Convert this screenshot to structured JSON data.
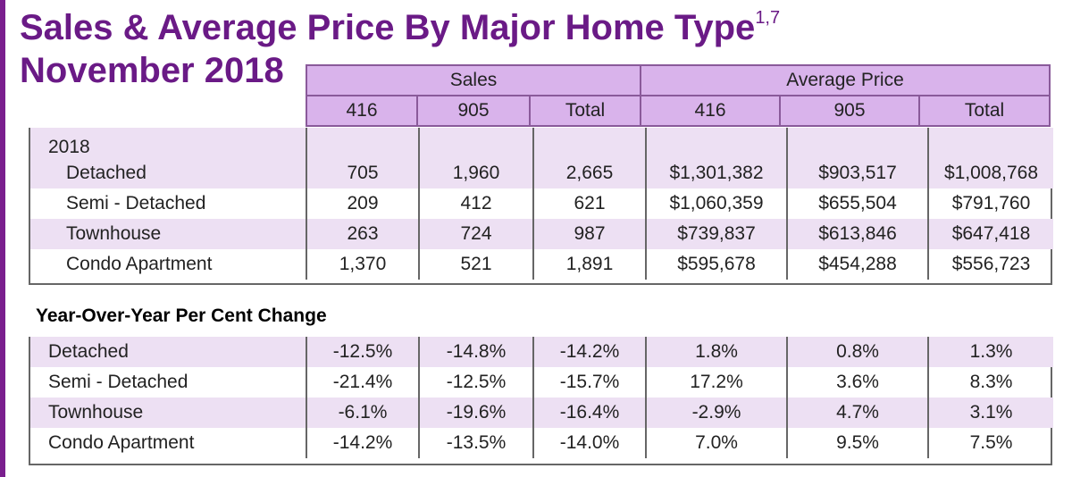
{
  "title": {
    "line1": "Sales & Average Price By Major Home Type",
    "superscript": "1,7",
    "line2": "November 2018"
  },
  "header": {
    "groups": [
      "Sales",
      "Average Price"
    ],
    "columns": [
      "416",
      "905",
      "Total",
      "416",
      "905",
      "Total"
    ]
  },
  "section_year": "2018",
  "rows_2018": [
    {
      "label": "Detached",
      "values": [
        "705",
        "1,960",
        "2,665",
        "$1,301,382",
        "$903,517",
        "$1,008,768"
      ]
    },
    {
      "label": "Semi - Detached",
      "values": [
        "209",
        "412",
        "621",
        "$1,060,359",
        "$655,504",
        "$791,760"
      ]
    },
    {
      "label": "Townhouse",
      "values": [
        "263",
        "724",
        "987",
        "$739,837",
        "$613,846",
        "$647,418"
      ]
    },
    {
      "label": "Condo Apartment",
      "values": [
        "1,370",
        "521",
        "1,891",
        "$595,678",
        "$454,288",
        "$556,723"
      ]
    }
  ],
  "yoy_heading": "Year-Over-Year Per Cent Change",
  "rows_yoy": [
    {
      "label": "Detached",
      "values": [
        "-12.5%",
        "-14.8%",
        "-14.2%",
        "1.8%",
        "0.8%",
        "1.3%"
      ]
    },
    {
      "label": "Semi - Detached",
      "values": [
        "-21.4%",
        "-12.5%",
        "-15.7%",
        "17.2%",
        "3.6%",
        "8.3%"
      ]
    },
    {
      "label": "Townhouse",
      "values": [
        "-6.1%",
        "-19.6%",
        "-16.4%",
        "-2.9%",
        "4.7%",
        "3.1%"
      ]
    },
    {
      "label": "Condo Apartment",
      "values": [
        "-14.2%",
        "-13.5%",
        "-14.0%",
        "7.0%",
        "9.5%",
        "7.5%"
      ]
    }
  ],
  "colors": {
    "title": "#6a1a86",
    "header_fill": "#d9b3eb",
    "row_shade": "#ede0f3"
  }
}
